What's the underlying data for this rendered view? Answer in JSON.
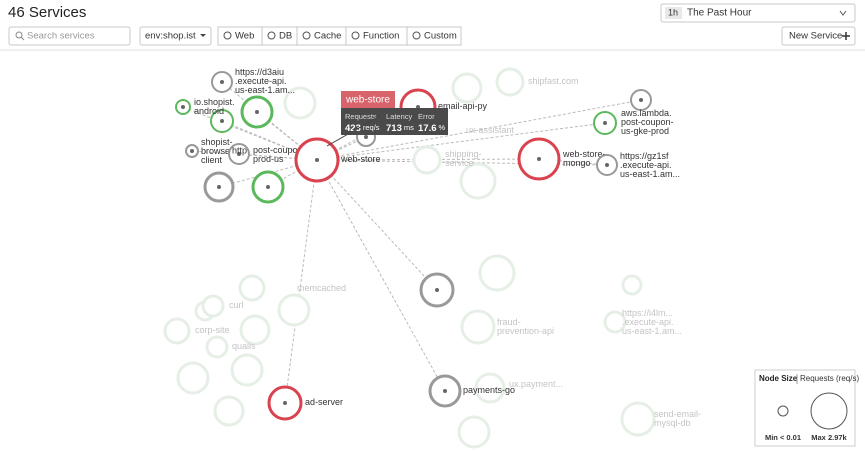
{
  "header": {
    "title": "46 Services",
    "time_badge": "1h",
    "time_range": "The Past Hour"
  },
  "toolbar": {
    "search_placeholder": "Search services",
    "env": "env:shop.ist",
    "filters": [
      "Web",
      "DB",
      "Cache",
      "Function",
      "Custom"
    ],
    "new_button": "New Service"
  },
  "nodes": [
    {
      "label": [
        "https://d3aiu",
        ".execute-api.",
        "us-east-1.am..."
      ]
    },
    {
      "label": [
        "io.shopist.",
        "android"
      ]
    },
    {
      "label": [
        "shopist-",
        "browser-",
        "client"
      ]
    },
    {
      "label": [
        "post-coupon-",
        "prod-us"
      ],
      "tag": "http"
    },
    {
      "label": [
        "web-store"
      ]
    },
    {
      "label": [
        "email-api-py"
      ]
    },
    {
      "label": [
        "aws.lambda.",
        "post-coupon-",
        "us-gke-prod"
      ]
    },
    {
      "label": [
        "web-store-",
        "mongo"
      ]
    },
    {
      "label": [
        "https://gz1sf",
        ".execute-api.",
        "us-east-1.am..."
      ]
    },
    {
      "label": [
        "ad-server"
      ]
    },
    {
      "label": [
        "payments-go"
      ]
    }
  ],
  "background_nodes": [
    {
      "label": [
        "shipfast.com"
      ]
    },
    {
      "label": [
        "ux-assistant"
      ]
    },
    {
      "label": [
        "shipping-",
        "service"
      ]
    },
    {
      "label": [
        "memcached"
      ]
    },
    {
      "label": [
        "curl"
      ]
    },
    {
      "label": [
        "corp-site"
      ]
    },
    {
      "label": [
        "quails"
      ]
    },
    {
      "label": [
        "fraud-",
        "prevention-api"
      ]
    },
    {
      "label": [
        "https://i4lm...",
        ".execute-api.",
        "us-east-1.am..."
      ]
    },
    {
      "label": [
        "ux.payment..."
      ]
    },
    {
      "label": [
        "send-email-",
        "mysql-db"
      ]
    }
  ],
  "tooltip": {
    "title": "web-store",
    "metrics": [
      {
        "name": "Requests",
        "value": 423,
        "unit": "req/s"
      },
      {
        "name": "Latency",
        "value": 713,
        "unit": "ms"
      },
      {
        "name": "Error",
        "value": 17.6,
        "unit": "%"
      }
    ]
  },
  "legend": {
    "title": "Node Size",
    "metric": "Requests (req/s)",
    "min": "Min < 0.01",
    "max": "Max 2.97k"
  }
}
